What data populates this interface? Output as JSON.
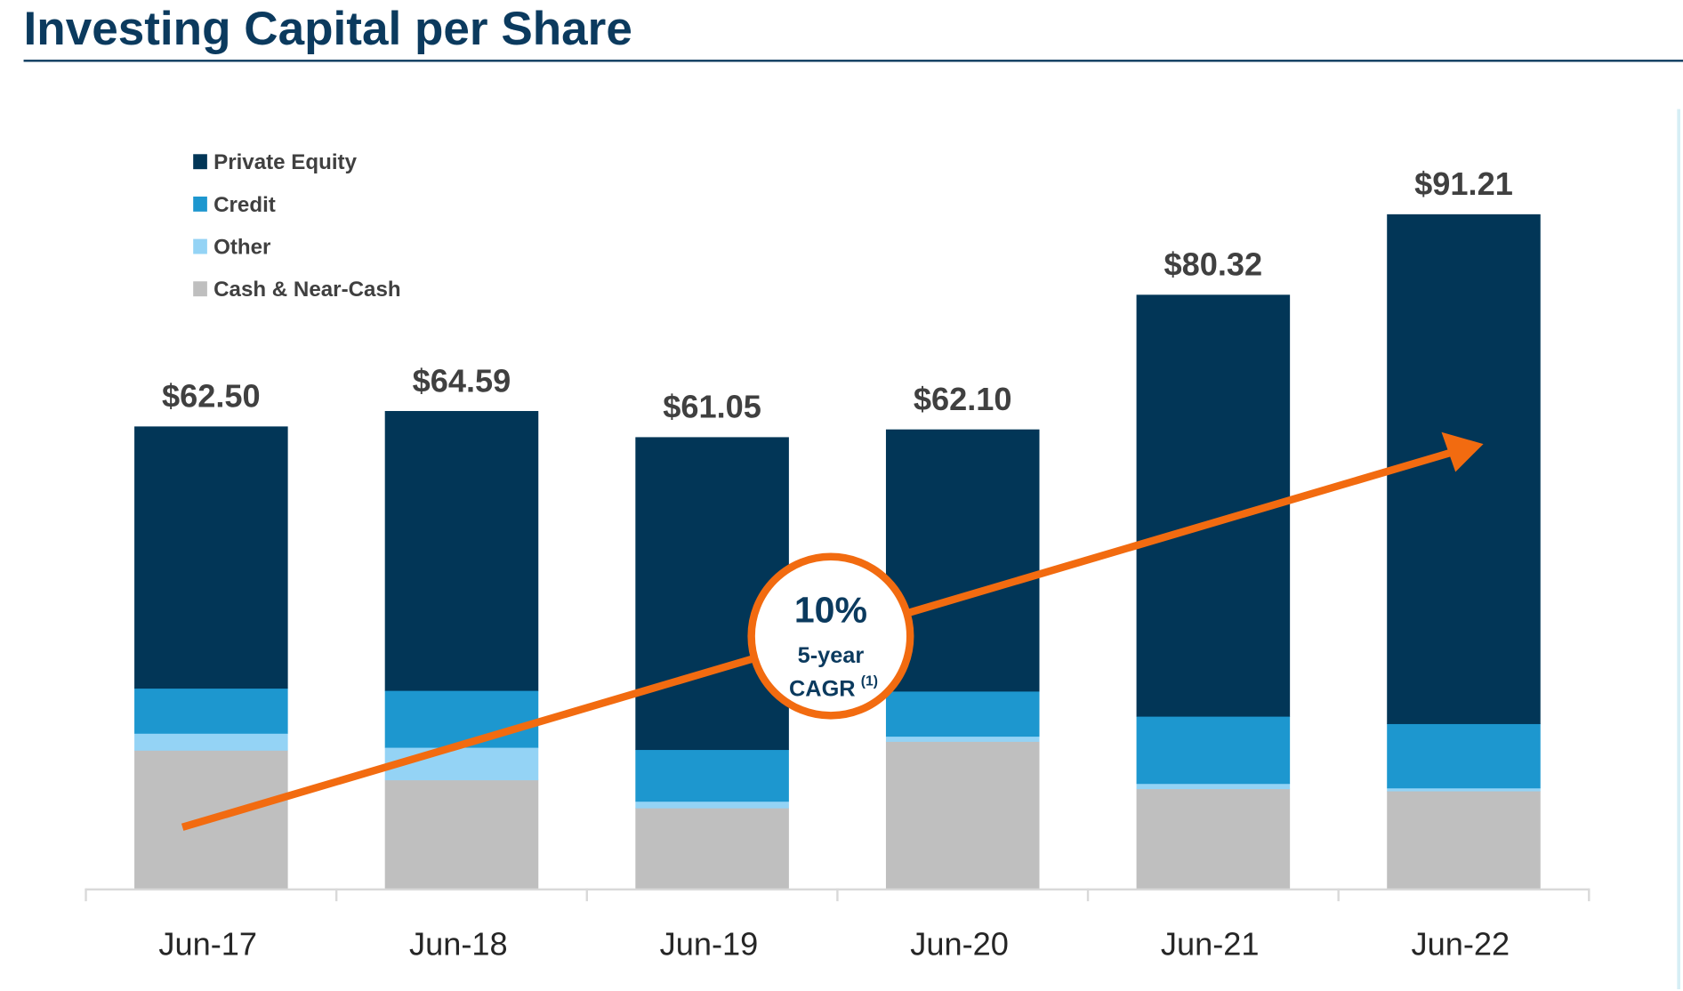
{
  "title": "Investing Capital per Share",
  "colors": {
    "title": "#0b3a5e",
    "private_equity": "#023657",
    "credit": "#1d97cf",
    "other": "#94d3f5",
    "cash": "#bfbfbf",
    "arrow": "#f26b10",
    "axis": "#d9d9d9"
  },
  "callout": {
    "value": "10%",
    "line1": "5-year",
    "line2": "CAGR",
    "footnote": "(1)"
  },
  "chart_data": {
    "type": "bar",
    "stacked": true,
    "title": "Investing Capital per Share",
    "categories": [
      "Jun-17",
      "Jun-18",
      "Jun-19",
      "Jun-20",
      "Jun-21",
      "Jun-22"
    ],
    "totals": [
      "$62.50",
      "$64.59",
      "$61.05",
      "$62.10",
      "$80.32",
      "$91.21"
    ],
    "total_values": [
      62.5,
      64.59,
      61.05,
      62.1,
      80.32,
      91.21
    ],
    "series": [
      {
        "name": "Cash & Near-Cash",
        "key": "cash",
        "values": [
          18.7,
          14.7,
          10.9,
          19.9,
          13.5,
          13.2
        ]
      },
      {
        "name": "Other",
        "key": "other",
        "values": [
          2.3,
          4.4,
          0.9,
          0.7,
          0.7,
          0.4
        ]
      },
      {
        "name": "Credit",
        "key": "credit",
        "values": [
          6.1,
          7.7,
          7.0,
          6.1,
          9.1,
          8.7
        ]
      },
      {
        "name": "Private Equity",
        "key": "private_equity",
        "values": [
          35.4,
          37.8,
          42.25,
          35.4,
          57.0,
          68.9
        ]
      }
    ],
    "legend": [
      "Private Equity",
      "Credit",
      "Other",
      "Cash & Near-Cash"
    ],
    "legend_keys": [
      "private_equity",
      "credit",
      "other",
      "cash"
    ],
    "legend_position": "top-left",
    "ylim": [
      0,
      92
    ],
    "grid": false,
    "xlabel": "",
    "ylabel": ""
  }
}
